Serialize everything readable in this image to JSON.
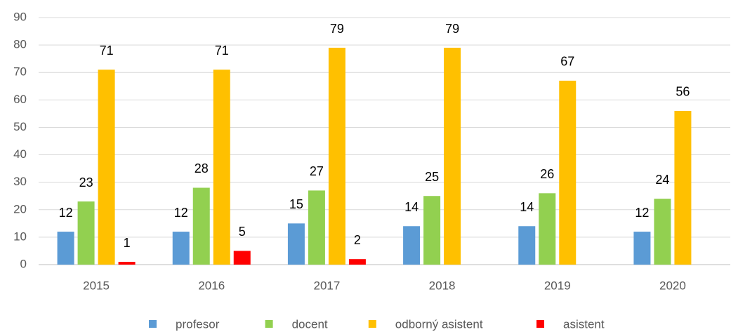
{
  "chart_data": {
    "type": "bar",
    "categories": [
      "2015",
      "2016",
      "2017",
      "2018",
      "2019",
      "2020"
    ],
    "series": [
      {
        "name": "profesor",
        "color": "#5b9bd5",
        "values": [
          12,
          12,
          15,
          14,
          14,
          12
        ]
      },
      {
        "name": "docent",
        "color": "#92d050",
        "values": [
          23,
          28,
          27,
          25,
          26,
          24
        ]
      },
      {
        "name": "odborný asistent",
        "color": "#ffc000",
        "values": [
          71,
          71,
          79,
          79,
          67,
          56
        ]
      },
      {
        "name": "asistent",
        "color": "#ff0000",
        "values": [
          1,
          5,
          2,
          null,
          null,
          null
        ]
      }
    ],
    "ylim": [
      0,
      90
    ],
    "yticks": [
      0,
      10,
      20,
      30,
      40,
      50,
      60,
      70,
      80,
      90
    ],
    "grid": true,
    "legend": "bottom"
  }
}
